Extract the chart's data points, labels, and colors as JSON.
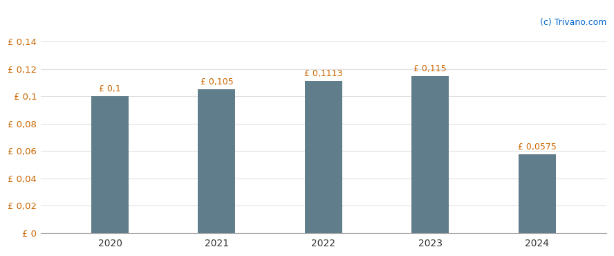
{
  "categories": [
    "2020",
    "2021",
    "2022",
    "2023",
    "2024"
  ],
  "values": [
    0.1,
    0.105,
    0.1113,
    0.115,
    0.0575
  ],
  "labels": [
    "£ 0,1",
    "£ 0,105",
    "£ 0,1113",
    "£ 0,115",
    "£ 0,0575"
  ],
  "bar_color": "#607d8b",
  "background_color": "#ffffff",
  "ylim": [
    0,
    0.145
  ],
  "yticks": [
    0,
    0.02,
    0.04,
    0.06,
    0.08,
    0.1,
    0.12,
    0.14
  ],
  "ytick_labels": [
    "£ 0",
    "£ 0,02",
    "£ 0,04",
    "£ 0,06",
    "£ 0,08",
    "£ 0,1",
    "£ 0,12",
    "£ 0,14"
  ],
  "tick_label_color": "#cc6600",
  "watermark": "(c) Trivano.com",
  "watermark_color": "#0066cc",
  "grid_color": "#e0e0e0",
  "bar_width": 0.35,
  "label_fontsize": 9,
  "tick_fontsize": 9.5,
  "xtick_fontsize": 10
}
